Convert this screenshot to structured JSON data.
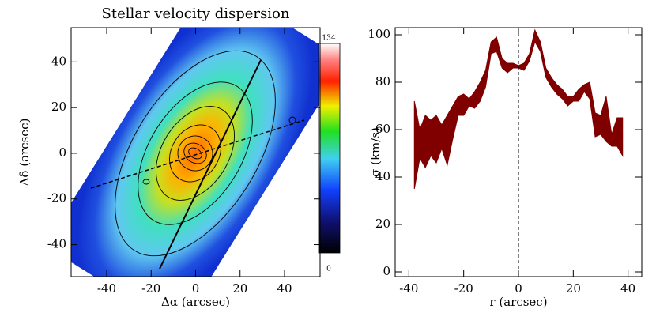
{
  "chart_data": [
    {
      "type": "map",
      "title": "Stellar velocity dispersion",
      "xlabel": "Δα  (arcsec)",
      "ylabel": "Δδ  (arcsec)",
      "xlim": [
        -56,
        56
      ],
      "ylim": [
        -54,
        55
      ],
      "xticks": [
        -40,
        -20,
        0,
        20,
        40
      ],
      "yticks": [
        -40,
        -20,
        0,
        20,
        40
      ],
      "clim": [
        0,
        134
      ]
    },
    {
      "type": "area",
      "xlabel": "r (arcsec)",
      "ylabel": "σ (km/s)",
      "xlim": [
        -45,
        45
      ],
      "ylim": [
        -2,
        103
      ],
      "xticks": [
        -40,
        -20,
        0,
        20,
        40
      ],
      "yticks": [
        0,
        20,
        40,
        60,
        80,
        100
      ],
      "vline": 0,
      "color": "#800000",
      "x": [
        -38,
        -36,
        -34,
        -32,
        -30,
        -28,
        -26,
        -24,
        -22,
        -20,
        -18,
        -16,
        -14,
        -12,
        -10,
        -8,
        -6,
        -4,
        -2,
        0,
        2,
        4,
        6,
        8,
        10,
        12,
        14,
        16,
        18,
        20,
        22,
        24,
        26,
        28,
        30,
        32,
        34,
        36,
        38
      ],
      "upper": [
        72,
        60,
        66,
        64,
        66,
        62,
        66,
        70,
        74,
        75,
        73,
        76,
        80,
        85,
        97,
        99,
        90,
        88,
        88,
        87,
        88,
        92,
        102,
        97,
        86,
        82,
        79,
        77,
        74,
        74,
        77,
        79,
        80,
        67,
        66,
        74,
        58,
        65,
        65
      ],
      "lower": [
        35,
        48,
        44,
        49,
        46,
        52,
        45,
        56,
        66,
        66,
        70,
        69,
        72,
        78,
        92,
        93,
        86,
        84,
        86,
        86,
        85,
        89,
        97,
        93,
        82,
        78,
        75,
        73,
        70,
        72,
        72,
        76,
        73,
        57,
        58,
        55,
        53,
        53,
        49
      ]
    }
  ]
}
